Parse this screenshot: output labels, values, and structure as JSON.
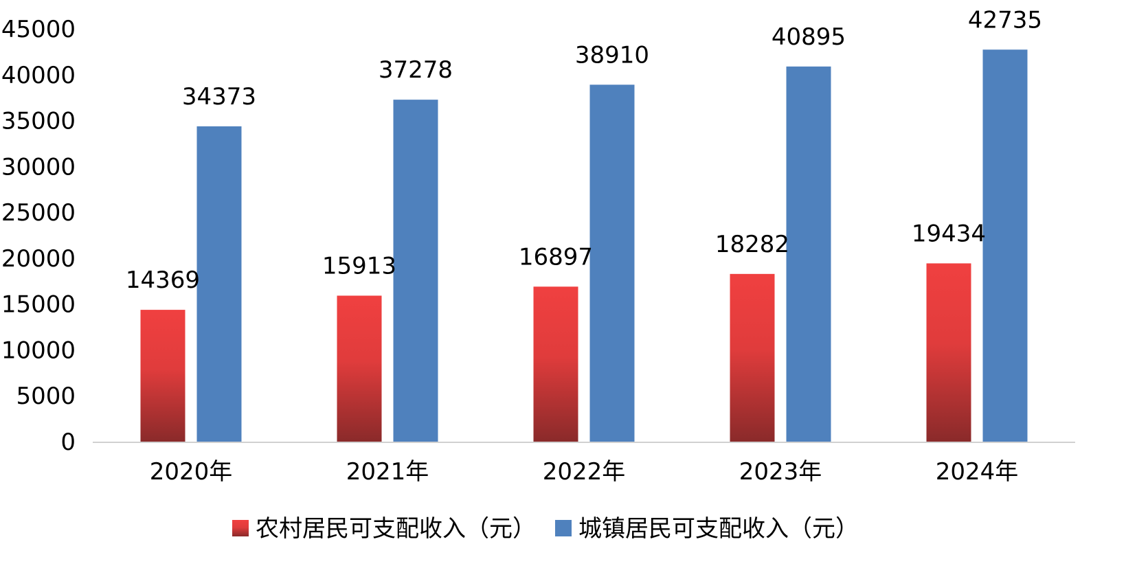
{
  "chart_data": {
    "type": "bar",
    "title": "",
    "xlabel": "",
    "ylabel": "",
    "categories": [
      "2020年",
      "2021年",
      "2022年",
      "2023年",
      "2024年"
    ],
    "series": [
      {
        "name": "农村居民可支配收入（元）",
        "values": [
          14369,
          15913,
          16897,
          18282,
          19434
        ],
        "color": "#f04040",
        "color_dark": "#8a2a2a"
      },
      {
        "name": "城镇居民可支配收入（元）",
        "values": [
          34373,
          37278,
          38910,
          40895,
          42735
        ],
        "color": "#4f81bd"
      }
    ],
    "ylim": [
      0,
      45000
    ],
    "yticks": [
      0,
      5000,
      10000,
      15000,
      20000,
      25000,
      30000,
      35000,
      40000,
      45000
    ],
    "grid": false,
    "legend_position": "bottom",
    "data_labels": true
  }
}
